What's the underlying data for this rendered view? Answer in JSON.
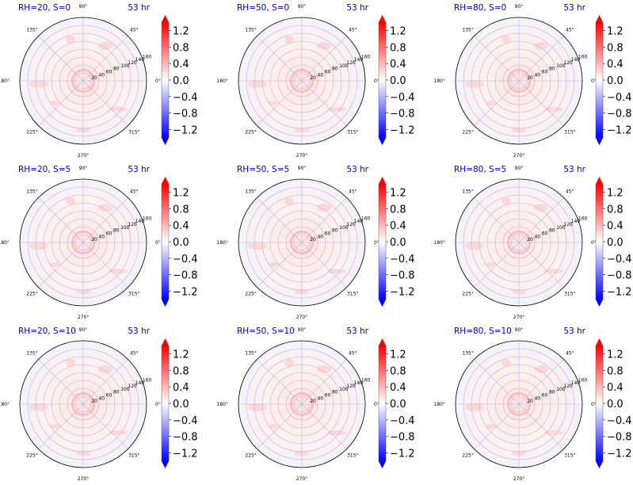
{
  "figure": {
    "colormap": {
      "name": "bwr",
      "low": "#0000ff",
      "mid": "#ffffff",
      "high": "#ff0000"
    },
    "title_color": "#0000cc",
    "radial_ticks": [
      "20",
      "40",
      "60",
      "80",
      "100",
      "120",
      "140",
      "160"
    ],
    "angle_ticks": [
      "0°",
      "45°",
      "90°",
      "135°",
      "180°",
      "225°",
      "270°",
      "315°"
    ],
    "colorbar": {
      "ticks": [
        "1.2",
        "0.8",
        "0.4",
        "0.0",
        "−0.4",
        "−0.8",
        "−1.2"
      ],
      "range": [
        -1.4,
        1.4
      ],
      "extend": "both"
    }
  },
  "chart_data": [
    {
      "type": "heatmap",
      "projection": "polar",
      "title": "RH=20, S=0",
      "time_label": "53 hr",
      "rlim": [
        0,
        160
      ],
      "grid": true
    },
    {
      "type": "heatmap",
      "projection": "polar",
      "title": "RH=50, S=0",
      "time_label": "53 hr",
      "rlim": [
        0,
        160
      ],
      "grid": true
    },
    {
      "type": "heatmap",
      "projection": "polar",
      "title": "RH=80, S=0",
      "time_label": "53 hr",
      "rlim": [
        0,
        160
      ],
      "grid": true
    },
    {
      "type": "heatmap",
      "projection": "polar",
      "title": "RH=20, S=5",
      "time_label": "53 hr",
      "rlim": [
        0,
        160
      ],
      "grid": true
    },
    {
      "type": "heatmap",
      "projection": "polar",
      "title": "RH=50, S=5",
      "time_label": "53 hr",
      "rlim": [
        0,
        160
      ],
      "grid": true
    },
    {
      "type": "heatmap",
      "projection": "polar",
      "title": "RH=80, S=5",
      "time_label": "53 hr",
      "rlim": [
        0,
        160
      ],
      "grid": true
    },
    {
      "type": "heatmap",
      "projection": "polar",
      "title": "RH=20, S=10",
      "time_label": "53 hr",
      "rlim": [
        0,
        160
      ],
      "grid": true
    },
    {
      "type": "heatmap",
      "projection": "polar",
      "title": "RH=50, S=10",
      "time_label": "53 hr",
      "rlim": [
        0,
        160
      ],
      "grid": true
    },
    {
      "type": "heatmap",
      "projection": "polar",
      "title": "RH=80, S=10",
      "time_label": "53 hr",
      "rlim": [
        0,
        160
      ],
      "grid": true
    }
  ]
}
